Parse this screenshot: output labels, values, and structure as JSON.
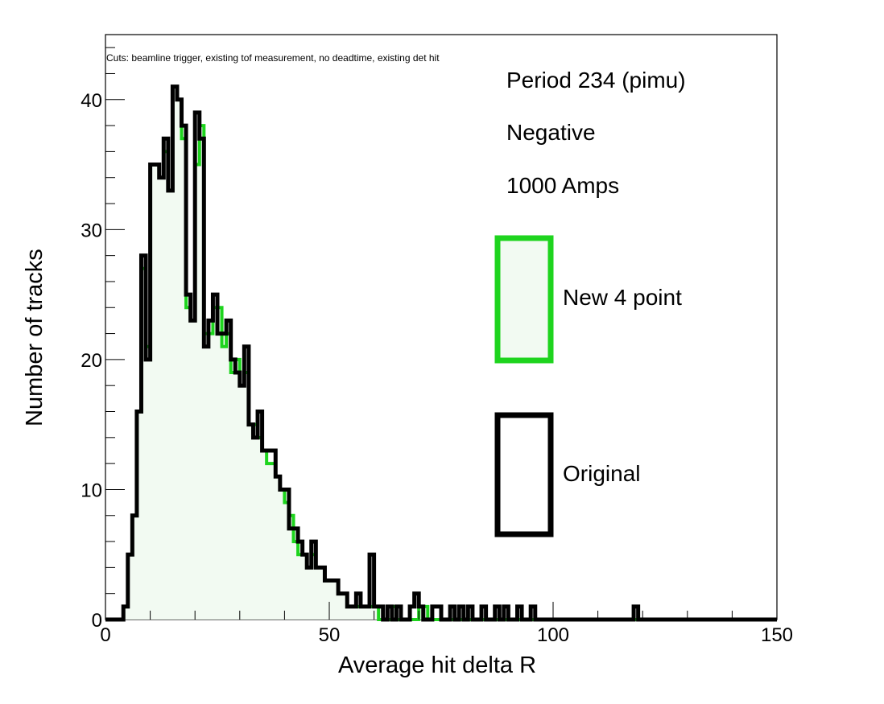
{
  "chart_data": {
    "type": "histogram",
    "xlabel": "Average hit delta R",
    "ylabel": "Number of tracks",
    "xlim": [
      0,
      150
    ],
    "ylim": [
      0,
      45
    ],
    "x_ticks": [
      0,
      50,
      100,
      150
    ],
    "y_ticks": [
      0,
      10,
      20,
      30,
      40
    ],
    "cuts_note": "Cuts: beamline trigger, existing tof measurement, no deadtime, existing det hit",
    "info_lines": [
      "Period 234 (pimu)",
      "Negative",
      "1000 Amps"
    ],
    "legend_placement": "right",
    "bin_width": 1,
    "series": [
      {
        "name": "New 4 point",
        "color": "#1ed41e",
        "fill": "#f2faf2",
        "bin_starts": [
          0,
          1,
          2,
          3,
          4,
          5,
          6,
          7,
          8,
          9,
          10,
          11,
          12,
          13,
          14,
          15,
          16,
          17,
          18,
          19,
          20,
          21,
          22,
          23,
          24,
          25,
          26,
          27,
          28,
          29,
          30,
          31,
          32,
          33,
          34,
          35,
          36,
          37,
          38,
          39,
          40,
          41,
          42,
          43,
          44,
          45,
          46,
          47,
          48,
          49,
          50,
          51,
          52,
          53,
          54,
          55,
          56,
          57,
          58,
          59,
          60,
          61,
          62,
          63,
          64,
          65,
          66,
          67,
          68,
          69,
          70,
          71,
          72,
          73,
          74,
          75,
          76,
          77,
          78,
          79,
          80,
          81,
          82,
          83,
          84,
          85,
          86,
          87,
          88,
          89,
          90,
          91,
          92,
          93,
          94,
          95,
          96,
          97,
          98,
          99,
          100,
          101,
          102,
          103,
          104,
          105,
          106,
          107,
          108,
          109,
          110,
          111,
          112,
          113,
          114,
          115,
          116,
          117,
          118,
          119,
          120,
          121,
          122,
          123,
          124,
          125,
          126,
          127,
          128,
          129,
          130,
          131,
          132,
          133,
          134,
          135,
          136,
          137,
          138,
          139,
          140,
          141,
          142,
          143,
          144,
          145,
          146,
          147,
          148,
          149
        ],
        "counts": [
          0,
          0,
          0,
          0,
          1,
          5,
          8,
          16,
          27,
          21,
          35,
          35,
          34,
          36,
          33,
          41,
          40,
          37,
          24,
          23,
          35,
          38,
          22,
          22,
          24,
          24,
          21,
          22,
          19,
          20,
          18,
          19,
          15,
          15,
          14,
          13,
          12,
          12,
          11,
          10,
          9,
          8,
          6,
          5,
          5,
          4,
          5,
          4,
          4,
          3,
          3,
          3,
          2,
          2,
          1,
          1,
          1,
          1,
          1,
          1,
          1,
          0,
          0,
          0,
          1,
          0,
          0,
          0,
          0,
          0,
          1,
          1,
          0,
          0,
          0,
          0,
          0,
          0,
          0,
          0,
          0,
          0,
          0,
          0,
          0,
          0,
          0,
          0,
          0,
          0,
          0,
          0,
          0,
          0,
          0,
          0,
          0,
          0,
          0,
          0,
          0,
          0,
          0,
          0,
          0,
          0,
          0,
          0,
          0,
          0,
          0,
          0,
          0,
          0,
          0,
          0,
          0,
          0,
          0,
          0,
          0,
          0,
          0,
          0,
          0,
          0,
          0,
          0,
          0,
          0,
          0,
          0,
          0,
          0,
          0,
          0,
          0,
          0,
          0,
          0,
          0,
          0,
          0,
          0,
          0,
          0,
          0,
          0,
          0,
          0
        ]
      },
      {
        "name": "Original",
        "color": "#000000",
        "fill": "none",
        "bin_starts": [
          0,
          1,
          2,
          3,
          4,
          5,
          6,
          7,
          8,
          9,
          10,
          11,
          12,
          13,
          14,
          15,
          16,
          17,
          18,
          19,
          20,
          21,
          22,
          23,
          24,
          25,
          26,
          27,
          28,
          29,
          30,
          31,
          32,
          33,
          34,
          35,
          36,
          37,
          38,
          39,
          40,
          41,
          42,
          43,
          44,
          45,
          46,
          47,
          48,
          49,
          50,
          51,
          52,
          53,
          54,
          55,
          56,
          57,
          58,
          59,
          60,
          61,
          62,
          63,
          64,
          65,
          66,
          67,
          68,
          69,
          70,
          71,
          72,
          73,
          74,
          75,
          76,
          77,
          78,
          79,
          80,
          81,
          82,
          83,
          84,
          85,
          86,
          87,
          88,
          89,
          90,
          91,
          92,
          93,
          94,
          95,
          96,
          97,
          98,
          99,
          100,
          101,
          102,
          103,
          104,
          105,
          106,
          107,
          108,
          109,
          110,
          111,
          112,
          113,
          114,
          115,
          116,
          117,
          118,
          119,
          120,
          121,
          122,
          123,
          124,
          125,
          126,
          127,
          128,
          129,
          130,
          131,
          132,
          133,
          134,
          135,
          136,
          137,
          138,
          139,
          140,
          141,
          142,
          143,
          144,
          145,
          146,
          147,
          148,
          149
        ],
        "counts": [
          0,
          0,
          0,
          0,
          1,
          5,
          8,
          16,
          28,
          20,
          35,
          35,
          34,
          37,
          33,
          41,
          40,
          38,
          25,
          23,
          39,
          37,
          21,
          23,
          25,
          22,
          22,
          23,
          20,
          19,
          18,
          21,
          15,
          14,
          16,
          13,
          13,
          13,
          11,
          10,
          10,
          7,
          7,
          6,
          5,
          4,
          6,
          4,
          4,
          3,
          3,
          3,
          2,
          2,
          1,
          1,
          2,
          1,
          1,
          5,
          1,
          1,
          0,
          1,
          0,
          1,
          0,
          0,
          1,
          2,
          1,
          0,
          0,
          1,
          1,
          0,
          0,
          1,
          0,
          1,
          0,
          1,
          0,
          0,
          1,
          0,
          0,
          1,
          0,
          1,
          0,
          0,
          1,
          0,
          0,
          1,
          0,
          0,
          0,
          0,
          0,
          0,
          0,
          0,
          0,
          0,
          0,
          0,
          0,
          0,
          0,
          0,
          0,
          0,
          0,
          0,
          0,
          0,
          1,
          0,
          0,
          0,
          0,
          0,
          0,
          0,
          0,
          0,
          0,
          0,
          0,
          0,
          0,
          0,
          0,
          0,
          0,
          0,
          0,
          0,
          0,
          0,
          0,
          0,
          0,
          0,
          0,
          0,
          0,
          0
        ]
      }
    ]
  }
}
